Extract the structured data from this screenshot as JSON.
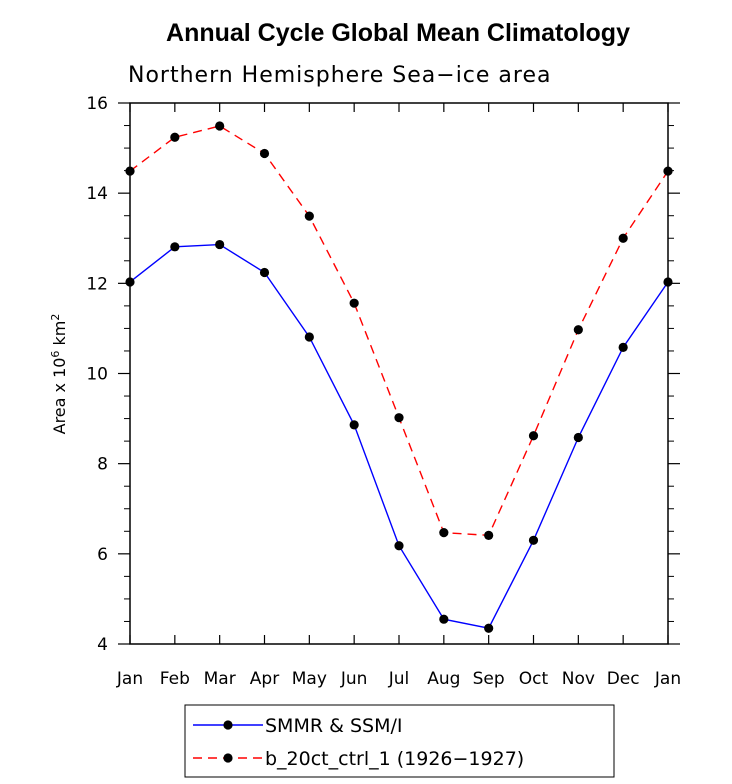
{
  "chart_data": {
    "type": "line",
    "title": "Annual Cycle Global Mean Climatology",
    "subtitle": "Northern Hemisphere Sea−ice area",
    "ylabel_prefix": "Area x 10",
    "ylabel_exp1": "6",
    "ylabel_unit": " km",
    "ylabel_exp2": "2",
    "categories": [
      "Jan",
      "Feb",
      "Mar",
      "Apr",
      "May",
      "Jun",
      "Jul",
      "Aug",
      "Sep",
      "Oct",
      "Nov",
      "Dec",
      "Jan"
    ],
    "ylim": [
      4,
      16
    ],
    "yticks": [
      4,
      6,
      8,
      10,
      12,
      14,
      16
    ],
    "grid": false,
    "legend_position": "bottom",
    "series": [
      {
        "name": "SMMR & SSM/I",
        "color": "#0000ff",
        "line_style": "solid",
        "values": [
          12.03,
          12.81,
          12.86,
          12.24,
          10.81,
          8.86,
          6.18,
          4.55,
          4.35,
          6.3,
          8.58,
          10.58,
          12.03
        ]
      },
      {
        "name": "b_20ct_ctrl_1 (1926−1927)",
        "color": "#ff0000",
        "line_style": "dashed",
        "values": [
          14.49,
          15.24,
          15.49,
          14.88,
          13.49,
          11.56,
          9.02,
          6.47,
          6.41,
          8.62,
          10.97,
          13.0,
          14.49
        ]
      }
    ]
  }
}
